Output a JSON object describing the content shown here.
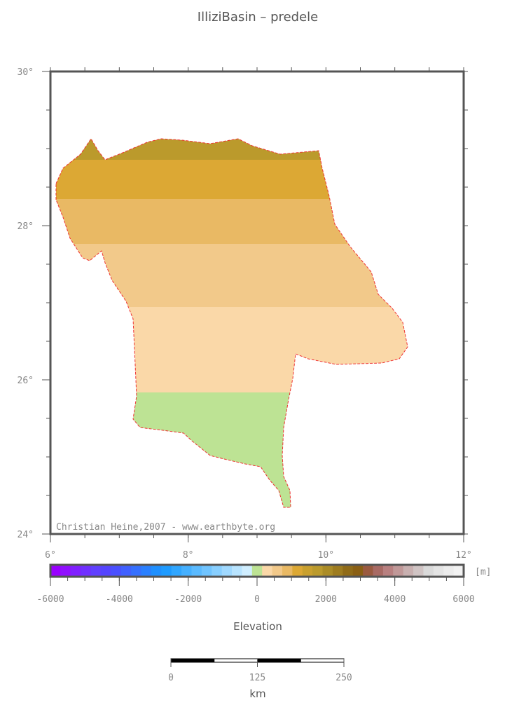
{
  "title": "IlliziBasin – predele",
  "map": {
    "lat_ticks": [
      {
        "value": 30,
        "label": "30°"
      },
      {
        "value": 28,
        "label": "28°"
      },
      {
        "value": 26,
        "label": "26°"
      },
      {
        "value": 24,
        "label": "24°"
      }
    ],
    "lon_ticks": [
      {
        "value": 6,
        "label": "6°"
      },
      {
        "value": 8,
        "label": "8°"
      },
      {
        "value": 10,
        "label": "10°"
      },
      {
        "value": 12,
        "label": "12°"
      }
    ],
    "credit": "Christian Heine,2007 - www.earthbyte.org"
  },
  "colorbar": {
    "unit": "[m]",
    "ticks": [
      -6000,
      -4000,
      -2000,
      0,
      2000,
      4000,
      6000
    ],
    "label": "Elevation"
  },
  "scale_bar": {
    "ticks": [
      0,
      125,
      250
    ],
    "unit": "km"
  }
}
